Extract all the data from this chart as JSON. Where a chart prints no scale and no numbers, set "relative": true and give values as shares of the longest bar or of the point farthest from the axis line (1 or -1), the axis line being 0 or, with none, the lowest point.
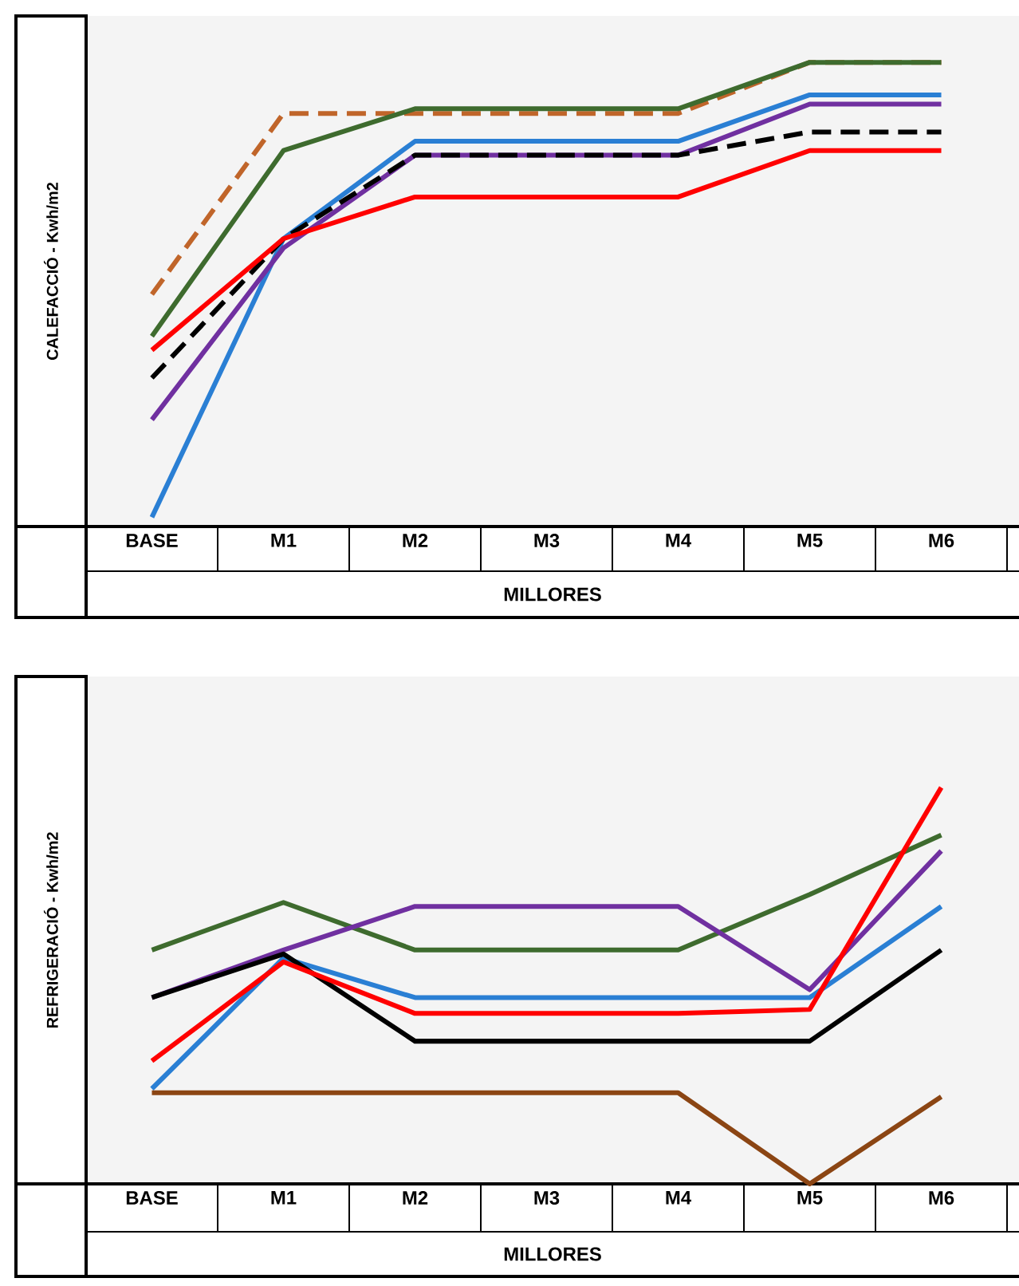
{
  "chart_data": [
    {
      "type": "line",
      "relative": true,
      "ylabel": "CALEFACCIÓ  -  Kwh/m2",
      "xlabel": "MILLORES",
      "tick_labels": "x",
      "grid": false,
      "categories": [
        "BASE",
        "M1",
        "M2",
        "M3",
        "M4",
        "M5",
        "M6"
      ],
      "series": [
        {
          "color": "#c0652a",
          "line_style": "dashed",
          "values": [
            0.5,
            0.89,
            0.89,
            0.89,
            0.89,
            1,
            1
          ]
        },
        {
          "color": "#3e6b2e",
          "line_style": "solid",
          "values": [
            0.41,
            0.81,
            0.9,
            0.9,
            0.9,
            1,
            1
          ]
        },
        {
          "color": "#2a7fd4",
          "line_style": "solid",
          "values": [
            0.02,
            0.62,
            0.83,
            0.83,
            0.83,
            0.93,
            0.93
          ]
        },
        {
          "color": "#7030a0",
          "line_style": "solid",
          "values": [
            0.23,
            0.6,
            0.8,
            0.8,
            0.8,
            0.91,
            0.91
          ]
        },
        {
          "color": "#000000",
          "line_style": "dashed",
          "values": [
            0.32,
            0.62,
            0.8,
            0.8,
            0.8,
            0.85,
            0.85
          ]
        },
        {
          "color": "#ff0000",
          "line_style": "solid",
          "values": [
            0.38,
            0.62,
            0.71,
            0.71,
            0.71,
            0.81,
            0.81
          ]
        }
      ]
    },
    {
      "type": "line",
      "relative": true,
      "ylabel": "REFRIGERACIÓ - Kwh/m2",
      "xlabel": "MILLORES",
      "tick_labels": "x",
      "grid": false,
      "categories": [
        "BASE",
        "M1",
        "M2",
        "M3",
        "M4",
        "M5",
        "M6"
      ],
      "series": [
        {
          "color": "#3e6b2e",
          "line_style": "solid",
          "values": [
            0.59,
            0.71,
            0.59,
            0.59,
            0.59,
            0.73,
            0.88
          ]
        },
        {
          "color": "#7030a0",
          "line_style": "solid",
          "values": [
            0.47,
            0.59,
            0.7,
            0.7,
            0.7,
            0.49,
            0.84
          ]
        },
        {
          "color": "#2a7fd4",
          "line_style": "solid",
          "values": [
            0.24,
            0.57,
            0.47,
            0.47,
            0.47,
            0.47,
            0.7
          ]
        },
        {
          "color": "#000000",
          "line_style": "solid",
          "values": [
            0.47,
            0.58,
            0.36,
            0.36,
            0.36,
            0.36,
            0.59
          ]
        },
        {
          "color": "#ff0000",
          "line_style": "solid",
          "values": [
            0.31,
            0.56,
            0.43,
            0.43,
            0.43,
            0.44,
            1
          ]
        },
        {
          "color": "#8b4513",
          "line_style": "solid",
          "values": [
            0.23,
            0.23,
            0.23,
            0.23,
            0.23,
            0,
            0.22
          ]
        }
      ]
    }
  ]
}
